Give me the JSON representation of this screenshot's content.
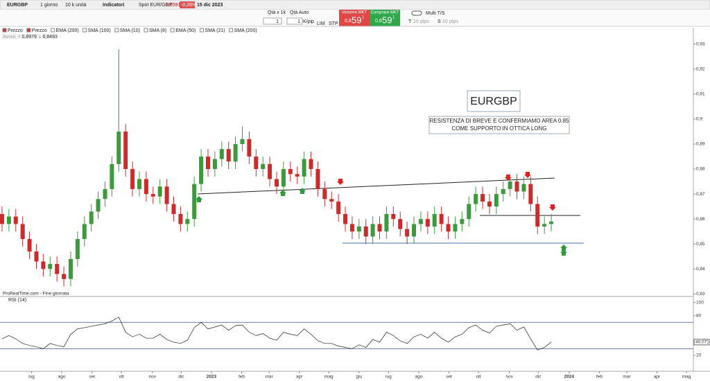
{
  "toolbar": {
    "symbol": "EURGBP",
    "timeframe": "1 giorno",
    "units": "10 k unità",
    "indicators": "Indicatori",
    "spot_label": "Spot EUR/GBP",
    "spot_price": "0,8591",
    "spot_change": "-0,28%",
    "date": "15 dic 2023"
  },
  "order_bar": {
    "qty_label": "Qtà x 1k",
    "qty_auto": "Qtà Auto",
    "qty1": "1",
    "qty2": "1",
    "kpip": "K/pip",
    "lim": "LIM",
    "stp": "STP",
    "sell_label": "Vendere MKT",
    "sell_small": "0,8",
    "sell_big": "59",
    "sell_sup": "1",
    "buy_label": "Comprare MKT",
    "buy_small": "0,8",
    "buy_big": "59",
    "buy_sup": "1",
    "multi_ts": "Multi T/S",
    "t": "T",
    "t_val": "10",
    "t_pips": "pips",
    "s": "S",
    "s_val": "10",
    "s_pips": "pips"
  },
  "legend": [
    "Prezzo",
    "Prezzo",
    "EMA (200)",
    "SMA (100)",
    "SMA (10)",
    "SMA (8)",
    "EMA (50)",
    "SMA (21)",
    "SMA (200)"
  ],
  "alerts": {
    "label": "Avvisi",
    "up": "0,8979",
    "down": "0,8493"
  },
  "annotations": {
    "box_title": "EURGBP",
    "note_line1": "RESISTENZA DI BREVE E CONFERMIAMO AREA 0.85",
    "note_line2": "COME SUPPORTO IN OTTICA LONG",
    "source": "ProRealTime.com - Fine giornata"
  },
  "chart_data": [
    {
      "type": "candlestick",
      "colors": {
        "up": "#3c9a3c",
        "down": "#cc2b2b"
      },
      "x": [
        0,
        1,
        2,
        3,
        4,
        5,
        6,
        7,
        8,
        9,
        10,
        11,
        12,
        13,
        14,
        15,
        16,
        17,
        18,
        19,
        20,
        21,
        22,
        23,
        24,
        25,
        26,
        27,
        28,
        29,
        30,
        31,
        32,
        33,
        34,
        35,
        36,
        37,
        38,
        39,
        40,
        41,
        42,
        43,
        44,
        45,
        46,
        47,
        48,
        49,
        50,
        51,
        52,
        53,
        54,
        55,
        56,
        57,
        58,
        59,
        60,
        61,
        62,
        63,
        64,
        65,
        66,
        67,
        68,
        69,
        70,
        71,
        72,
        73,
        74,
        75,
        76,
        77,
        78,
        79,
        80
      ],
      "open": [
        0.862,
        0.858,
        0.861,
        0.858,
        0.852,
        0.847,
        0.843,
        0.84,
        0.842,
        0.838,
        0.836,
        0.844,
        0.852,
        0.858,
        0.863,
        0.868,
        0.872,
        0.882,
        0.895,
        0.88,
        0.872,
        0.876,
        0.87,
        0.869,
        0.873,
        0.866,
        0.862,
        0.858,
        0.86,
        0.874,
        0.885,
        0.88,
        0.884,
        0.888,
        0.883,
        0.89,
        0.892,
        0.885,
        0.88,
        0.882,
        0.876,
        0.873,
        0.88,
        0.878,
        0.877,
        0.884,
        0.88,
        0.872,
        0.868,
        0.867,
        0.862,
        0.858,
        0.855,
        0.857,
        0.853,
        0.858,
        0.855,
        0.862,
        0.86,
        0.856,
        0.853,
        0.858,
        0.86,
        0.857,
        0.862,
        0.858,
        0.855,
        0.858,
        0.86,
        0.866,
        0.87,
        0.867,
        0.865,
        0.87,
        0.872,
        0.875,
        0.871,
        0.874,
        0.866,
        0.857,
        0.858
      ],
      "high": [
        0.865,
        0.864,
        0.864,
        0.861,
        0.855,
        0.85,
        0.846,
        0.845,
        0.845,
        0.841,
        0.847,
        0.855,
        0.861,
        0.866,
        0.871,
        0.875,
        0.885,
        0.928,
        0.898,
        0.883,
        0.879,
        0.879,
        0.873,
        0.876,
        0.876,
        0.869,
        0.865,
        0.863,
        0.877,
        0.888,
        0.888,
        0.887,
        0.891,
        0.891,
        0.893,
        0.897,
        0.895,
        0.888,
        0.885,
        0.885,
        0.879,
        0.883,
        0.883,
        0.881,
        0.887,
        0.887,
        0.883,
        0.875,
        0.871,
        0.87,
        0.865,
        0.861,
        0.86,
        0.86,
        0.861,
        0.861,
        0.865,
        0.865,
        0.863,
        0.859,
        0.861,
        0.863,
        0.863,
        0.865,
        0.865,
        0.861,
        0.861,
        0.863,
        0.869,
        0.873,
        0.873,
        0.87,
        0.873,
        0.875,
        0.878,
        0.878,
        0.877,
        0.877,
        0.869,
        0.861,
        0.862
      ],
      "low": [
        0.855,
        0.855,
        0.855,
        0.849,
        0.844,
        0.84,
        0.837,
        0.837,
        0.835,
        0.833,
        0.833,
        0.841,
        0.849,
        0.855,
        0.86,
        0.865,
        0.869,
        0.879,
        0.877,
        0.869,
        0.869,
        0.867,
        0.866,
        0.866,
        0.863,
        0.859,
        0.855,
        0.855,
        0.857,
        0.871,
        0.877,
        0.877,
        0.881,
        0.88,
        0.88,
        0.887,
        0.882,
        0.877,
        0.877,
        0.873,
        0.87,
        0.87,
        0.875,
        0.874,
        0.874,
        0.877,
        0.869,
        0.865,
        0.864,
        0.859,
        0.855,
        0.852,
        0.852,
        0.85,
        0.85,
        0.852,
        0.852,
        0.857,
        0.853,
        0.85,
        0.85,
        0.855,
        0.854,
        0.854,
        0.855,
        0.852,
        0.852,
        0.855,
        0.857,
        0.863,
        0.864,
        0.862,
        0.862,
        0.867,
        0.869,
        0.868,
        0.868,
        0.863,
        0.854,
        0.854,
        0.855
      ],
      "close": [
        0.858,
        0.861,
        0.858,
        0.852,
        0.847,
        0.843,
        0.84,
        0.842,
        0.838,
        0.836,
        0.844,
        0.852,
        0.858,
        0.863,
        0.868,
        0.872,
        0.882,
        0.895,
        0.88,
        0.872,
        0.876,
        0.87,
        0.869,
        0.873,
        0.866,
        0.862,
        0.858,
        0.86,
        0.874,
        0.885,
        0.88,
        0.884,
        0.888,
        0.883,
        0.89,
        0.892,
        0.885,
        0.88,
        0.882,
        0.876,
        0.873,
        0.88,
        0.878,
        0.877,
        0.884,
        0.88,
        0.872,
        0.868,
        0.867,
        0.862,
        0.858,
        0.855,
        0.857,
        0.853,
        0.858,
        0.855,
        0.862,
        0.86,
        0.856,
        0.853,
        0.858,
        0.86,
        0.857,
        0.862,
        0.858,
        0.855,
        0.858,
        0.86,
        0.866,
        0.87,
        0.867,
        0.865,
        0.87,
        0.872,
        0.875,
        0.871,
        0.874,
        0.866,
        0.857,
        0.858,
        0.859
      ],
      "xlim": [
        -0.3,
        100.7
      ],
      "ylim": [
        0.829,
        0.936
      ],
      "xticks": [
        {
          "value": 4.3,
          "label": "lug"
        },
        {
          "value": 8.7,
          "label": "ago"
        },
        {
          "value": 13.1,
          "label": "set"
        },
        {
          "value": 17.4,
          "label": "ott"
        },
        {
          "value": 21.9,
          "label": "nov"
        },
        {
          "value": 26.1,
          "label": "dic"
        },
        {
          "value": 30.5,
          "label": "2023"
        },
        {
          "value": 34.9,
          "label": "feb"
        },
        {
          "value": 38.9,
          "label": "mar"
        },
        {
          "value": 43.3,
          "label": "apr"
        },
        {
          "value": 47.6,
          "label": "mag"
        },
        {
          "value": 52,
          "label": "giu"
        },
        {
          "value": 56.3,
          "label": "lug"
        },
        {
          "value": 60.7,
          "label": "ago"
        },
        {
          "value": 65.1,
          "label": "set"
        },
        {
          "value": 69.4,
          "label": "ott"
        },
        {
          "value": 73.9,
          "label": "nov"
        },
        {
          "value": 78.1,
          "label": "dic"
        },
        {
          "value": 82.6,
          "label": "2024"
        },
        {
          "value": 87,
          "label": "feb"
        },
        {
          "value": 91,
          "label": "mar"
        },
        {
          "value": 95.4,
          "label": "apr"
        },
        {
          "value": 99.7,
          "label": "mag"
        }
      ],
      "yticks": [
        {
          "value": 0.93,
          "label": "0,93"
        },
        {
          "value": 0.92,
          "label": "0,92"
        },
        {
          "value": 0.91,
          "label": "0,91"
        },
        {
          "value": 0.9,
          "label": "0,9"
        },
        {
          "value": 0.89,
          "label": "0,89"
        },
        {
          "value": 0.88,
          "label": "0,88"
        },
        {
          "value": 0.87,
          "label": "0,87"
        },
        {
          "value": 0.86,
          "label": "0,86"
        },
        {
          "value": 0.85,
          "label": "0,85"
        },
        {
          "value": 0.84,
          "label": "0,84"
        },
        {
          "value": 0.83,
          "label": "0,83"
        }
      ]
    },
    {
      "type": "line",
      "name": "RSI (14)",
      "color": "#222",
      "values": [
        45,
        50,
        45,
        38,
        35,
        33,
        30,
        38,
        35,
        33,
        52,
        60,
        62,
        64,
        66,
        68,
        72,
        78,
        55,
        48,
        52,
        46,
        46,
        52,
        44,
        40,
        38,
        43,
        62,
        70,
        60,
        63,
        66,
        58,
        65,
        66,
        55,
        50,
        53,
        46,
        43,
        55,
        52,
        50,
        60,
        52,
        42,
        38,
        38,
        34,
        32,
        30,
        36,
        32,
        44,
        40,
        55,
        50,
        42,
        38,
        48,
        52,
        46,
        55,
        46,
        40,
        48,
        52,
        62,
        66,
        58,
        54,
        64,
        66,
        68,
        58,
        63,
        45,
        28,
        32,
        40.071
      ],
      "last": {
        "value": 40.071,
        "label": "40,071"
      },
      "levels": [
        70,
        30
      ],
      "ylim": [
        0,
        105
      ],
      "yticks": [
        100,
        80,
        20
      ]
    }
  ]
}
